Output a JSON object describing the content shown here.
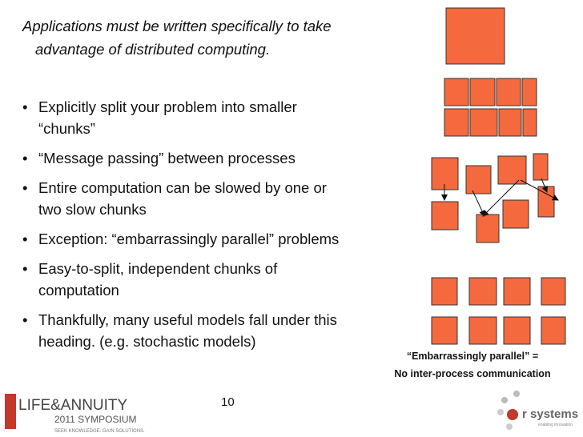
{
  "slide": {
    "intro": "Applications must be written specifically to take advantage of distributed computing.",
    "bullets": [
      "Explicitly split your problem into smaller “chunks”",
      "“Message passing” between processes",
      "Entire computation can be slowed by one or two slow chunks",
      "Exception: “embarrassingly parallel” problems",
      "Easy-to-split, independent chunks of computation",
      "Thankfully, many useful models fall under this heading.  (e.g. stochastic models)"
    ],
    "caption": [
      "“Embarrassingly parallel” =",
      "No inter-process communication"
    ],
    "page_number": "10",
    "logo_left": {
      "name": "LIFE&ANNUITY",
      "event": "2011 SYMPOSIUM",
      "tagline": "SEEK KNOWLEDGE. GAIN SOLUTIONS."
    },
    "logo_right": {
      "name": "r systems",
      "tagline": "enabling innovation"
    }
  }
}
